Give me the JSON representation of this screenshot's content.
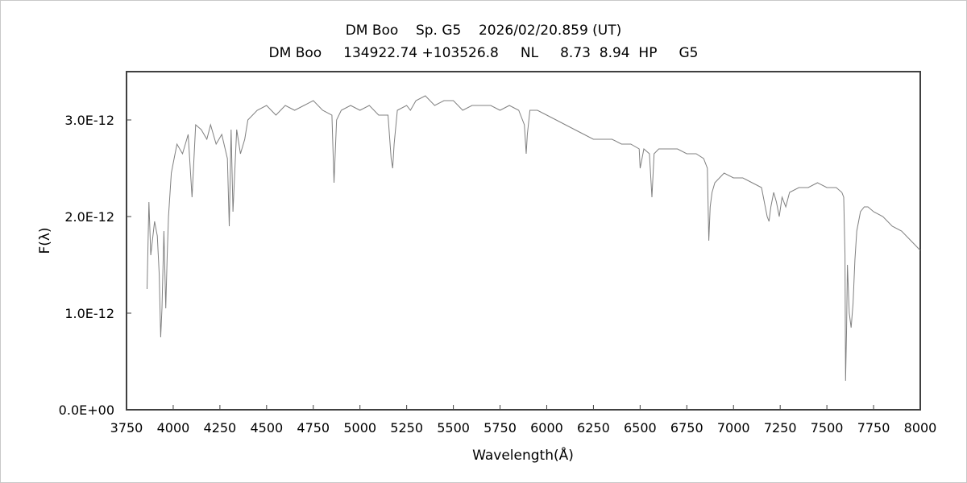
{
  "chart_data": {
    "type": "line",
    "title": "DM Boo    Sp. G5    2026/02/20.859 (UT)",
    "subtitle": "DM Boo     134922.74 +103526.8     NL     8.73  8.94  HP     G5",
    "xlabel": "Wavelength(Å)",
    "ylabel": "F(λ)",
    "xlim": [
      3750,
      8000
    ],
    "ylim": [
      0,
      3.5e-12
    ],
    "x_ticks": [
      "3750",
      "4000",
      "4250",
      "4500",
      "4750",
      "5000",
      "5250",
      "5500",
      "5750",
      "6000",
      "6250",
      "6500",
      "6750",
      "7000",
      "7250",
      "7500",
      "7750",
      "8000"
    ],
    "y_ticks": [
      "0.0E+00",
      "1.0E-12",
      "2.0E-12",
      "3.0E-12"
    ],
    "grid": false,
    "series": [
      {
        "color": "#808080",
        "x": [
          3860,
          3870,
          3880,
          3900,
          3915,
          3925,
          3933,
          3940,
          3950,
          3960,
          3968,
          3975,
          3990,
          4000,
          4020,
          4050,
          4080,
          4101,
          4120,
          4150,
          4180,
          4200,
          4230,
          4260,
          4290,
          4300,
          4310,
          4320,
          4340,
          4360,
          4383,
          4400,
          4450,
          4500,
          4550,
          4600,
          4650,
          4700,
          4750,
          4800,
          4850,
          4861,
          4875,
          4900,
          4950,
          5000,
          5050,
          5100,
          5150,
          5167,
          5175,
          5183,
          5200,
          5250,
          5270,
          5300,
          5350,
          5400,
          5450,
          5500,
          5550,
          5600,
          5650,
          5700,
          5750,
          5800,
          5850,
          5880,
          5890,
          5896,
          5910,
          5950,
          6000,
          6050,
          6100,
          6150,
          6200,
          6250,
          6300,
          6350,
          6400,
          6450,
          6495,
          6500,
          6520,
          6550,
          6563,
          6575,
          6600,
          6650,
          6700,
          6750,
          6800,
          6840,
          6860,
          6868,
          6875,
          6885,
          6900,
          6950,
          7000,
          7050,
          7100,
          7150,
          7180,
          7190,
          7200,
          7215,
          7230,
          7245,
          7260,
          7280,
          7300,
          7350,
          7400,
          7450,
          7500,
          7550,
          7580,
          7590,
          7597,
          7600,
          7605,
          7610,
          7620,
          7630,
          7640,
          7650,
          7660,
          7680,
          7700,
          7720,
          7750,
          7800,
          7850,
          7900,
          7950,
          8000
        ],
        "y": [
          1.25e-12,
          2.15e-12,
          1.6e-12,
          1.95e-12,
          1.8e-12,
          1.4e-12,
          7.5e-13,
          1.05e-12,
          1.85e-12,
          1.05e-12,
          1.6e-12,
          2e-12,
          2.45e-12,
          2.55e-12,
          2.75e-12,
          2.65e-12,
          2.85e-12,
          2.2e-12,
          2.95e-12,
          2.9e-12,
          2.8e-12,
          2.95e-12,
          2.75e-12,
          2.85e-12,
          2.6e-12,
          1.9e-12,
          2.9e-12,
          2.05e-12,
          2.9e-12,
          2.65e-12,
          2.8e-12,
          3e-12,
          3.1e-12,
          3.15e-12,
          3.05e-12,
          3.15e-12,
          3.1e-12,
          3.15e-12,
          3.2e-12,
          3.1e-12,
          3.05e-12,
          2.35e-12,
          3e-12,
          3.1e-12,
          3.15e-12,
          3.1e-12,
          3.15e-12,
          3.05e-12,
          3.05e-12,
          2.6e-12,
          2.5e-12,
          2.75e-12,
          3.1e-12,
          3.15e-12,
          3.1e-12,
          3.2e-12,
          3.25e-12,
          3.15e-12,
          3.2e-12,
          3.2e-12,
          3.1e-12,
          3.15e-12,
          3.15e-12,
          3.15e-12,
          3.1e-12,
          3.15e-12,
          3.1e-12,
          2.95e-12,
          2.65e-12,
          2.85e-12,
          3.1e-12,
          3.1e-12,
          3.05e-12,
          3e-12,
          2.95e-12,
          2.9e-12,
          2.85e-12,
          2.8e-12,
          2.8e-12,
          2.8e-12,
          2.75e-12,
          2.75e-12,
          2.7e-12,
          2.5e-12,
          2.7e-12,
          2.65e-12,
          2.2e-12,
          2.65e-12,
          2.7e-12,
          2.7e-12,
          2.7e-12,
          2.65e-12,
          2.65e-12,
          2.6e-12,
          2.5e-12,
          1.75e-12,
          2.1e-12,
          2.25e-12,
          2.35e-12,
          2.45e-12,
          2.4e-12,
          2.4e-12,
          2.35e-12,
          2.3e-12,
          2e-12,
          1.95e-12,
          2.1e-12,
          2.25e-12,
          2.15e-12,
          2e-12,
          2.2e-12,
          2.1e-12,
          2.25e-12,
          2.3e-12,
          2.3e-12,
          2.35e-12,
          2.3e-12,
          2.3e-12,
          2.25e-12,
          2.2e-12,
          1.6e-12,
          3e-13,
          8e-13,
          1.5e-12,
          1e-12,
          8.5e-13,
          1.1e-12,
          1.55e-12,
          1.85e-12,
          2.05e-12,
          2.1e-12,
          2.1e-12,
          2.05e-12,
          2e-12,
          1.9e-12,
          1.85e-12,
          1.75e-12,
          1.65e-12
        ]
      }
    ]
  }
}
